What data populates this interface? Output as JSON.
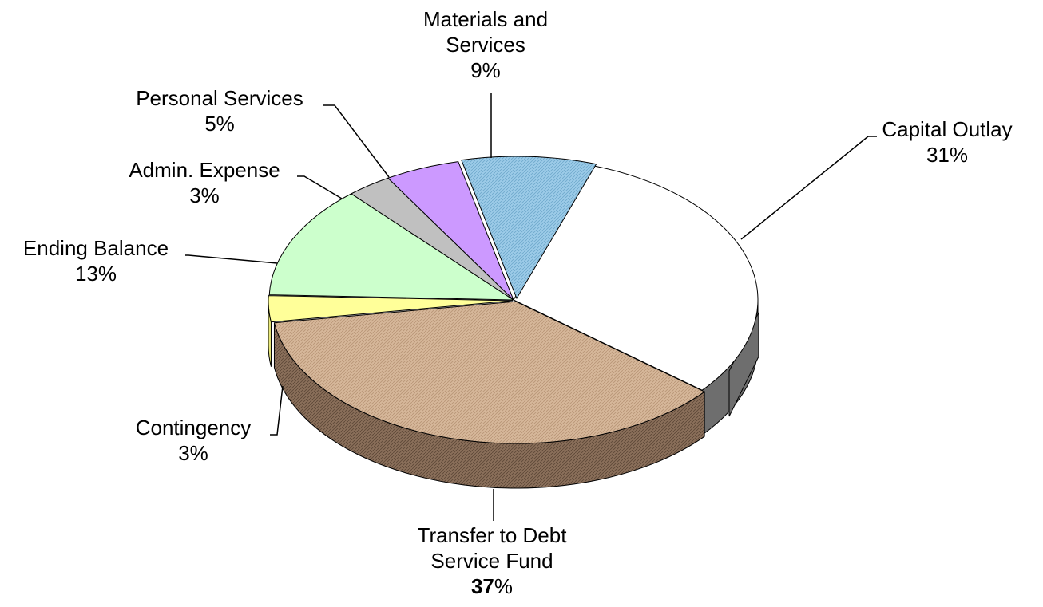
{
  "chart_data": {
    "type": "pie",
    "style": "3d-exploded-tilted",
    "slices": [
      {
        "label": "Capital Outlay",
        "lines": [
          "Capital Outlay"
        ],
        "value": 31,
        "pct": "31%",
        "color": "#ffffff"
      },
      {
        "label": "Transfer to Debt Service Fund",
        "lines": [
          "Transfer to Debt",
          "Service Fund"
        ],
        "value": 37,
        "pct_number": "37",
        "pct_suffix": "%",
        "color": "#d9b99b"
      },
      {
        "label": "Contingency",
        "lines": [
          "Contingency"
        ],
        "value": 3,
        "pct": "3%",
        "color": "#ffff99"
      },
      {
        "label": "Ending Balance",
        "lines": [
          "Ending Balance"
        ],
        "value": 13,
        "pct": "13%",
        "color": "#ccffcc"
      },
      {
        "label": "Admin. Expense",
        "lines": [
          "Admin. Expense"
        ],
        "value": 3,
        "pct": "3%",
        "color": "#c0c0c0"
      },
      {
        "label": "Personal Services",
        "lines": [
          "Personal Services"
        ],
        "value": 5,
        "pct": "5%",
        "color": "#cc99ff"
      },
      {
        "label": "Materials and Services",
        "lines": [
          "Materials and",
          "Services"
        ],
        "value": 9,
        "pct": "9%",
        "color": "#99ccee"
      }
    ]
  }
}
